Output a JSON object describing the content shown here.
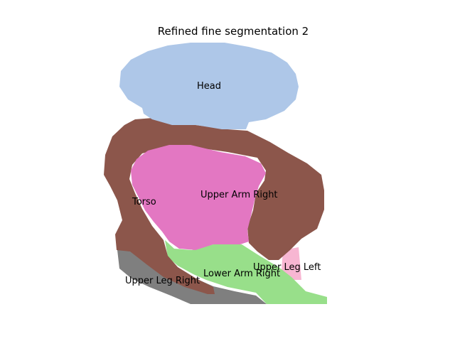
{
  "figure": {
    "title": "Refined fine segmentation 2"
  },
  "segments": [
    {
      "key": "head",
      "label": "Head",
      "color": "#aec7e8"
    },
    {
      "key": "torso",
      "label": "Torso",
      "color": "#8c564b"
    },
    {
      "key": "upper-arm-right",
      "label": "Upper Arm Right",
      "color": "#e377c2"
    },
    {
      "key": "lower-arm-right",
      "label": "Lower Arm Right",
      "color": "#98df8a"
    },
    {
      "key": "upper-leg-left",
      "label": "Upper Leg Left",
      "color": "#f7b6d2"
    },
    {
      "key": "upper-leg-right",
      "label": "Upper Leg Right",
      "color": "#7f7f7f"
    }
  ]
}
